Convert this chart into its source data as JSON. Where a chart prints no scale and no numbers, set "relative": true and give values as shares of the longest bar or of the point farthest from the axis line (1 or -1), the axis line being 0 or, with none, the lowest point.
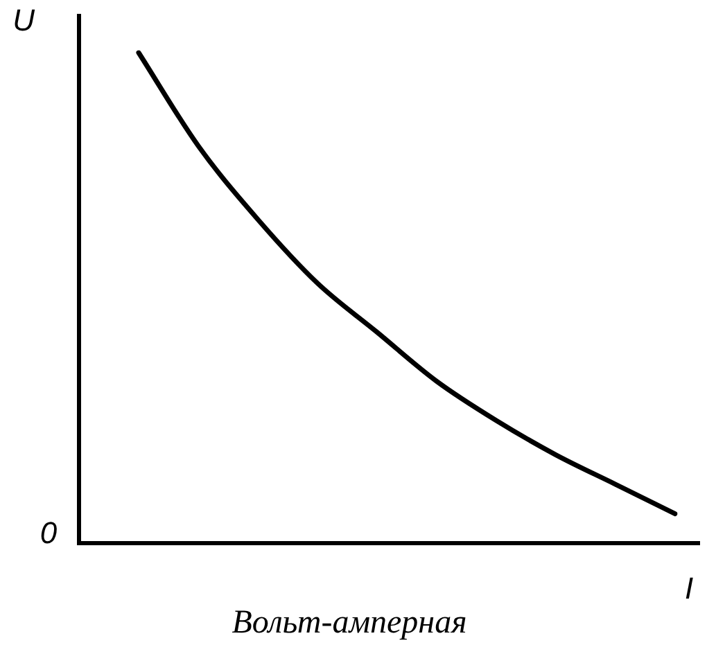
{
  "chart_data": {
    "type": "line",
    "title": "Вольт-амперная",
    "xlabel": "I",
    "ylabel": "U",
    "annotations": [
      "0"
    ],
    "relative": true,
    "color": "#000000",
    "marker": "none",
    "legend": false,
    "categories": [
      null,
      null,
      null,
      null,
      null,
      null,
      null,
      null,
      null,
      null,
      null
    ],
    "values": [
      null,
      1,
      0.81,
      0.66,
      0.53,
      0.43,
      0.33,
      0.25,
      0.18,
      0.12,
      0.06
    ]
  }
}
